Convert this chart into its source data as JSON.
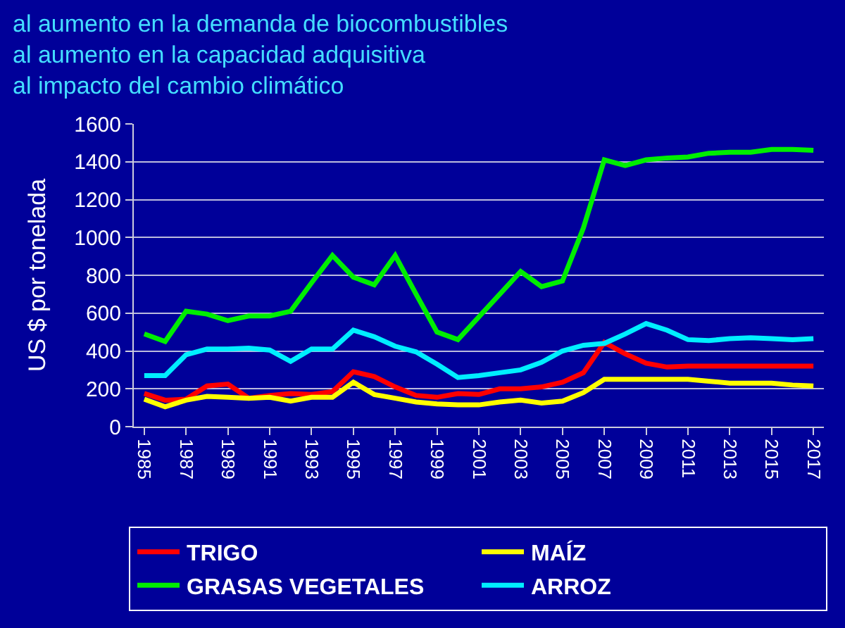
{
  "chart_data": {
    "type": "line",
    "title": "al aumento en la demanda de biocombustibles\nal aumento en la capacidad adquisitiva\nal impacto del cambio climático",
    "ylabel": "US $ por tonelada",
    "x": [
      1985,
      1986,
      1987,
      1988,
      1989,
      1990,
      1991,
      1992,
      1993,
      1994,
      1995,
      1996,
      1997,
      1998,
      1999,
      2000,
      2001,
      2002,
      2003,
      2004,
      2005,
      2006,
      2007,
      2008,
      2009,
      2010,
      2011,
      2012,
      2013,
      2014,
      2015,
      2016,
      2017
    ],
    "xlim": [
      1984.5,
      2017.5
    ],
    "xticks": [
      1985,
      1987,
      1989,
      1991,
      1993,
      1995,
      1997,
      1999,
      2001,
      2003,
      2005,
      2007,
      2009,
      2011,
      2013,
      2015,
      2017
    ],
    "ylim": [
      0,
      1600
    ],
    "yticks": [
      0,
      200,
      400,
      600,
      800,
      1000,
      1200,
      1400,
      1600
    ],
    "grid": "y",
    "legend": "bottom",
    "marker": "none",
    "line_style": "solid",
    "series": [
      {
        "name": "TRIGO",
        "color": "#ff0000",
        "values": [
          175,
          140,
          145,
          215,
          225,
          150,
          165,
          175,
          170,
          185,
          290,
          265,
          210,
          165,
          155,
          175,
          170,
          200,
          200,
          210,
          235,
          285,
          445,
          385,
          335,
          315,
          320,
          320,
          320,
          320,
          320,
          320,
          320
        ]
      },
      {
        "name": "MAÍZ",
        "color": "#ffff00",
        "values": [
          145,
          105,
          140,
          160,
          155,
          150,
          155,
          135,
          155,
          155,
          235,
          170,
          150,
          130,
          120,
          115,
          115,
          130,
          140,
          125,
          135,
          180,
          250,
          250,
          250,
          250,
          250,
          240,
          230,
          230,
          230,
          220,
          215
        ]
      },
      {
        "name": "GRASAS VEGETALES",
        "color": "#00ee00",
        "values": [
          490,
          450,
          610,
          595,
          560,
          585,
          585,
          610,
          760,
          905,
          790,
          750,
          905,
          700,
          500,
          460,
          580,
          700,
          820,
          740,
          770,
          1050,
          1410,
          1380,
          1410,
          1420,
          1425,
          1445,
          1450,
          1450,
          1465,
          1465,
          1460
        ]
      },
      {
        "name": "ARROZ",
        "color": "#00eeff",
        "values": [
          270,
          270,
          380,
          410,
          410,
          415,
          405,
          345,
          410,
          410,
          510,
          475,
          425,
          395,
          330,
          260,
          270,
          285,
          300,
          340,
          400,
          430,
          440,
          490,
          545,
          510,
          460,
          455,
          465,
          470,
          465,
          460,
          465
        ]
      }
    ]
  }
}
